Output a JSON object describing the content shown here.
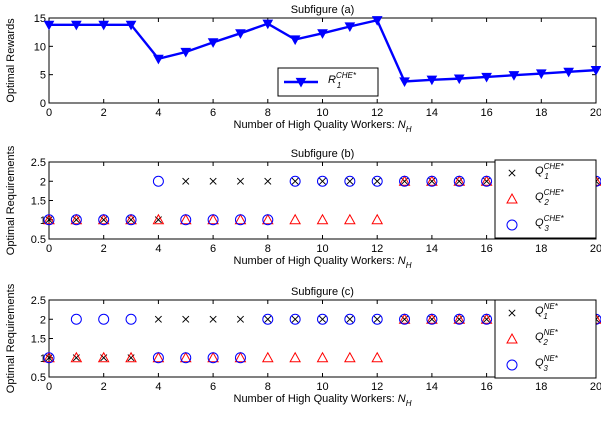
{
  "chart_data": [
    {
      "type": "line",
      "title": "Subfigure (a)",
      "xlabel": "Number of High Quality Workers: ",
      "xlabel_sub": "H",
      "ylabel": "Optimal Rewards",
      "xlim": [
        0,
        20
      ],
      "ylim": [
        0,
        15
      ],
      "xticks": [
        0,
        2,
        4,
        6,
        8,
        10,
        12,
        14,
        16,
        18,
        20
      ],
      "yticks": [
        0,
        5,
        10,
        15
      ],
      "grid": false,
      "legend_position": "lower-center",
      "x": [
        0,
        1,
        2,
        3,
        4,
        5,
        6,
        7,
        8,
        9,
        10,
        11,
        12,
        13,
        14,
        15,
        16,
        17,
        18,
        19,
        20
      ],
      "series": [
        {
          "name": "R",
          "name_sub": "1",
          "name_sup": "CHE*",
          "color": "#0000ff",
          "marker": "triangle-down",
          "values": [
            13.8,
            13.8,
            13.8,
            13.8,
            7.8,
            9.0,
            10.7,
            12.3,
            14.0,
            11.2,
            12.3,
            13.5,
            14.6,
            3.8,
            4.1,
            4.3,
            4.6,
            4.9,
            5.2,
            5.5,
            5.8
          ]
        }
      ]
    },
    {
      "type": "scatter",
      "title": "Subfigure (b)",
      "xlabel": "Number of High Quality Workers: ",
      "xlabel_sub": "H",
      "ylabel": "Optimal Requirements",
      "xlim": [
        0,
        20
      ],
      "ylim": [
        0.5,
        2.5
      ],
      "xticks": [
        0,
        2,
        4,
        6,
        8,
        10,
        12,
        14,
        16,
        18,
        20
      ],
      "yticks": [
        0.5,
        1,
        1.5,
        2,
        2.5
      ],
      "grid": false,
      "legend_position": "top-right",
      "x": [
        0,
        1,
        2,
        3,
        4,
        5,
        6,
        7,
        8,
        9,
        10,
        11,
        12,
        13,
        14,
        15,
        16,
        20
      ],
      "series": [
        {
          "name": "Q",
          "name_sub": "1",
          "name_sup": "CHE*",
          "color": "#000000",
          "marker": "x",
          "values": [
            1,
            1,
            1,
            1,
            1,
            2,
            2,
            2,
            2,
            2,
            2,
            2,
            2,
            2,
            2,
            2,
            2,
            2
          ]
        },
        {
          "name": "Q",
          "name_sub": "2",
          "name_sup": "CHE*",
          "color": "#ff0000",
          "marker": "triangle",
          "values": [
            1,
            1,
            1,
            1,
            1,
            1,
            1,
            1,
            1,
            1,
            1,
            1,
            1,
            2,
            2,
            2,
            2,
            2
          ]
        },
        {
          "name": "Q",
          "name_sub": "3",
          "name_sup": "CHE*",
          "color": "#0000ff",
          "marker": "circle",
          "values": [
            1,
            1,
            1,
            1,
            2,
            1,
            1,
            1,
            1,
            2,
            2,
            2,
            2,
            2,
            2,
            2,
            2,
            2
          ]
        }
      ]
    },
    {
      "type": "scatter",
      "title": "Subfigure (c)",
      "xlabel": "Number of High Quality Workers: ",
      "xlabel_sub": "H",
      "ylabel": "Optimal Requirements",
      "xlim": [
        0,
        20
      ],
      "ylim": [
        0.5,
        2.5
      ],
      "xticks": [
        0,
        2,
        4,
        6,
        8,
        10,
        12,
        14,
        16,
        18,
        20
      ],
      "yticks": [
        0.5,
        1,
        1.5,
        2,
        2.5
      ],
      "grid": false,
      "legend_position": "right",
      "x": [
        0,
        1,
        2,
        3,
        4,
        5,
        6,
        7,
        8,
        9,
        10,
        11,
        12,
        13,
        14,
        15,
        16,
        20
      ],
      "series": [
        {
          "name": "Q",
          "name_sub": "1",
          "name_sup": "NE*",
          "color": "#000000",
          "marker": "x",
          "values": [
            1,
            1,
            1,
            1,
            2,
            2,
            2,
            2,
            2,
            2,
            2,
            2,
            2,
            2,
            2,
            2,
            2,
            2
          ]
        },
        {
          "name": "Q",
          "name_sub": "2",
          "name_sup": "NE*",
          "color": "#ff0000",
          "marker": "triangle",
          "values": [
            1,
            1,
            1,
            1,
            1,
            1,
            1,
            1,
            1,
            1,
            1,
            1,
            1,
            2,
            2,
            2,
            2,
            2
          ]
        },
        {
          "name": "Q",
          "name_sub": "3",
          "name_sup": "NE*",
          "color": "#0000ff",
          "marker": "circle",
          "values": [
            1,
            2,
            2,
            2,
            1,
            1,
            1,
            1,
            2,
            2,
            2,
            2,
            2,
            2,
            2,
            2,
            2,
            2
          ]
        }
      ]
    }
  ]
}
